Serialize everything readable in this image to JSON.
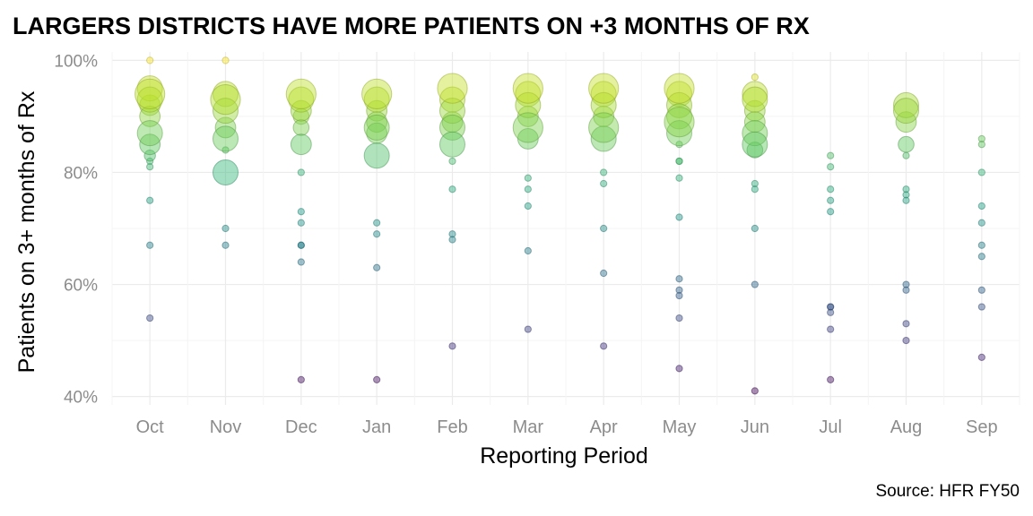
{
  "chart_data": {
    "type": "scatter",
    "title": "LARGERS DISTRICTS HAVE MORE PATIENTS ON +3 MONTHS OF RX",
    "xlabel": "Reporting Period",
    "ylabel": "Patients on 3+ months of Rx",
    "caption": "Source: HFR FY50",
    "categories": [
      "Oct",
      "Nov",
      "Dec",
      "Jan",
      "Feb",
      "Mar",
      "Apr",
      "May",
      "Jun",
      "Jul",
      "Aug",
      "Sep"
    ],
    "ylim": [
      38.5,
      101.5
    ],
    "y_ticks": [
      40,
      60,
      80,
      100
    ],
    "y_tick_labels": [
      "40%",
      "60%",
      "80%",
      "100%"
    ],
    "grid": true,
    "color_scale": "viridis (by value)",
    "points": [
      {
        "x": "Oct",
        "y": 100,
        "size": 1
      },
      {
        "x": "Oct",
        "y": 95,
        "size": 5
      },
      {
        "x": "Oct",
        "y": 94,
        "size": 6
      },
      {
        "x": "Oct",
        "y": 93,
        "size": 5
      },
      {
        "x": "Oct",
        "y": 92,
        "size": 4
      },
      {
        "x": "Oct",
        "y": 90,
        "size": 4
      },
      {
        "x": "Oct",
        "y": 87,
        "size": 5
      },
      {
        "x": "Oct",
        "y": 85,
        "size": 4
      },
      {
        "x": "Oct",
        "y": 83,
        "size": 2
      },
      {
        "x": "Oct",
        "y": 82,
        "size": 1
      },
      {
        "x": "Oct",
        "y": 81,
        "size": 1
      },
      {
        "x": "Oct",
        "y": 75,
        "size": 1
      },
      {
        "x": "Oct",
        "y": 67,
        "size": 1
      },
      {
        "x": "Oct",
        "y": 54,
        "size": 1
      },
      {
        "x": "Nov",
        "y": 100,
        "size": 1
      },
      {
        "x": "Nov",
        "y": 94,
        "size": 5
      },
      {
        "x": "Nov",
        "y": 93,
        "size": 6
      },
      {
        "x": "Nov",
        "y": 91,
        "size": 5
      },
      {
        "x": "Nov",
        "y": 88,
        "size": 4
      },
      {
        "x": "Nov",
        "y": 86,
        "size": 5
      },
      {
        "x": "Nov",
        "y": 84,
        "size": 1
      },
      {
        "x": "Nov",
        "y": 80,
        "size": 5
      },
      {
        "x": "Nov",
        "y": 70,
        "size": 1
      },
      {
        "x": "Nov",
        "y": 67,
        "size": 1
      },
      {
        "x": "Dec",
        "y": 94,
        "size": 6
      },
      {
        "x": "Dec",
        "y": 93,
        "size": 5
      },
      {
        "x": "Dec",
        "y": 91,
        "size": 4
      },
      {
        "x": "Dec",
        "y": 90,
        "size": 3
      },
      {
        "x": "Dec",
        "y": 88,
        "size": 3
      },
      {
        "x": "Dec",
        "y": 85,
        "size": 4
      },
      {
        "x": "Dec",
        "y": 80,
        "size": 1
      },
      {
        "x": "Dec",
        "y": 73,
        "size": 1
      },
      {
        "x": "Dec",
        "y": 71,
        "size": 1
      },
      {
        "x": "Dec",
        "y": 67,
        "size": 1
      },
      {
        "x": "Dec",
        "y": 67,
        "size": 1
      },
      {
        "x": "Dec",
        "y": 64,
        "size": 1
      },
      {
        "x": "Dec",
        "y": 43,
        "size": 1
      },
      {
        "x": "Jan",
        "y": 94,
        "size": 6
      },
      {
        "x": "Jan",
        "y": 93,
        "size": 5
      },
      {
        "x": "Jan",
        "y": 91,
        "size": 4
      },
      {
        "x": "Jan",
        "y": 89,
        "size": 4
      },
      {
        "x": "Jan",
        "y": 88,
        "size": 5
      },
      {
        "x": "Jan",
        "y": 87,
        "size": 4
      },
      {
        "x": "Jan",
        "y": 83,
        "size": 5
      },
      {
        "x": "Jan",
        "y": 71,
        "size": 1
      },
      {
        "x": "Jan",
        "y": 69,
        "size": 1
      },
      {
        "x": "Jan",
        "y": 63,
        "size": 1
      },
      {
        "x": "Jan",
        "y": 43,
        "size": 1
      },
      {
        "x": "Feb",
        "y": 95,
        "size": 6
      },
      {
        "x": "Feb",
        "y": 93,
        "size": 5
      },
      {
        "x": "Feb",
        "y": 91,
        "size": 5
      },
      {
        "x": "Feb",
        "y": 89,
        "size": 4
      },
      {
        "x": "Feb",
        "y": 88,
        "size": 5
      },
      {
        "x": "Feb",
        "y": 85,
        "size": 5
      },
      {
        "x": "Feb",
        "y": 82,
        "size": 1
      },
      {
        "x": "Feb",
        "y": 77,
        "size": 1
      },
      {
        "x": "Feb",
        "y": 69,
        "size": 1
      },
      {
        "x": "Feb",
        "y": 68,
        "size": 1
      },
      {
        "x": "Feb",
        "y": 49,
        "size": 1
      },
      {
        "x": "Mar",
        "y": 95,
        "size": 6
      },
      {
        "x": "Mar",
        "y": 94,
        "size": 5
      },
      {
        "x": "Mar",
        "y": 92,
        "size": 5
      },
      {
        "x": "Mar",
        "y": 90,
        "size": 4
      },
      {
        "x": "Mar",
        "y": 88,
        "size": 6
      },
      {
        "x": "Mar",
        "y": 86,
        "size": 4
      },
      {
        "x": "Mar",
        "y": 79,
        "size": 1
      },
      {
        "x": "Mar",
        "y": 77,
        "size": 1
      },
      {
        "x": "Mar",
        "y": 74,
        "size": 1
      },
      {
        "x": "Mar",
        "y": 66,
        "size": 1
      },
      {
        "x": "Mar",
        "y": 52,
        "size": 1
      },
      {
        "x": "Apr",
        "y": 95,
        "size": 6
      },
      {
        "x": "Apr",
        "y": 94,
        "size": 5
      },
      {
        "x": "Apr",
        "y": 92,
        "size": 5
      },
      {
        "x": "Apr",
        "y": 90,
        "size": 4
      },
      {
        "x": "Apr",
        "y": 88,
        "size": 6
      },
      {
        "x": "Apr",
        "y": 86,
        "size": 5
      },
      {
        "x": "Apr",
        "y": 80,
        "size": 1
      },
      {
        "x": "Apr",
        "y": 78,
        "size": 1
      },
      {
        "x": "Apr",
        "y": 70,
        "size": 1
      },
      {
        "x": "Apr",
        "y": 62,
        "size": 1
      },
      {
        "x": "Apr",
        "y": 49,
        "size": 1
      },
      {
        "x": "May",
        "y": 95,
        "size": 6
      },
      {
        "x": "May",
        "y": 94,
        "size": 5
      },
      {
        "x": "May",
        "y": 92,
        "size": 5
      },
      {
        "x": "May",
        "y": 90,
        "size": 5
      },
      {
        "x": "May",
        "y": 89,
        "size": 6
      },
      {
        "x": "May",
        "y": 87,
        "size": 5
      },
      {
        "x": "May",
        "y": 85,
        "size": 1
      },
      {
        "x": "May",
        "y": 82,
        "size": 1
      },
      {
        "x": "May",
        "y": 82,
        "size": 1
      },
      {
        "x": "May",
        "y": 79,
        "size": 1
      },
      {
        "x": "May",
        "y": 72,
        "size": 1
      },
      {
        "x": "May",
        "y": 61,
        "size": 1
      },
      {
        "x": "May",
        "y": 59,
        "size": 1
      },
      {
        "x": "May",
        "y": 58,
        "size": 1
      },
      {
        "x": "May",
        "y": 54,
        "size": 1
      },
      {
        "x": "May",
        "y": 45,
        "size": 1
      },
      {
        "x": "Jun",
        "y": 97,
        "size": 1
      },
      {
        "x": "Jun",
        "y": 94,
        "size": 5
      },
      {
        "x": "Jun",
        "y": 93,
        "size": 5
      },
      {
        "x": "Jun",
        "y": 91,
        "size": 4
      },
      {
        "x": "Jun",
        "y": 89,
        "size": 4
      },
      {
        "x": "Jun",
        "y": 87,
        "size": 5
      },
      {
        "x": "Jun",
        "y": 85,
        "size": 5
      },
      {
        "x": "Jun",
        "y": 84,
        "size": 3
      },
      {
        "x": "Jun",
        "y": 78,
        "size": 1
      },
      {
        "x": "Jun",
        "y": 77,
        "size": 1
      },
      {
        "x": "Jun",
        "y": 70,
        "size": 1
      },
      {
        "x": "Jun",
        "y": 60,
        "size": 1
      },
      {
        "x": "Jun",
        "y": 41,
        "size": 1
      },
      {
        "x": "Jul",
        "y": 83,
        "size": 1
      },
      {
        "x": "Jul",
        "y": 81,
        "size": 1
      },
      {
        "x": "Jul",
        "y": 77,
        "size": 1
      },
      {
        "x": "Jul",
        "y": 75,
        "size": 1
      },
      {
        "x": "Jul",
        "y": 73,
        "size": 1
      },
      {
        "x": "Jul",
        "y": 56,
        "size": 1
      },
      {
        "x": "Jul",
        "y": 56,
        "size": 1
      },
      {
        "x": "Jul",
        "y": 55,
        "size": 1
      },
      {
        "x": "Jul",
        "y": 52,
        "size": 1
      },
      {
        "x": "Jul",
        "y": 43,
        "size": 1
      },
      {
        "x": "Aug",
        "y": 92,
        "size": 5
      },
      {
        "x": "Aug",
        "y": 91,
        "size": 5
      },
      {
        "x": "Aug",
        "y": 89,
        "size": 4
      },
      {
        "x": "Aug",
        "y": 85,
        "size": 3
      },
      {
        "x": "Aug",
        "y": 83,
        "size": 1
      },
      {
        "x": "Aug",
        "y": 77,
        "size": 1
      },
      {
        "x": "Aug",
        "y": 76,
        "size": 1
      },
      {
        "x": "Aug",
        "y": 75,
        "size": 1
      },
      {
        "x": "Aug",
        "y": 60,
        "size": 1
      },
      {
        "x": "Aug",
        "y": 59,
        "size": 1
      },
      {
        "x": "Aug",
        "y": 53,
        "size": 1
      },
      {
        "x": "Aug",
        "y": 50,
        "size": 1
      },
      {
        "x": "Sep",
        "y": 86,
        "size": 1
      },
      {
        "x": "Sep",
        "y": 85,
        "size": 1
      },
      {
        "x": "Sep",
        "y": 80,
        "size": 1
      },
      {
        "x": "Sep",
        "y": 74,
        "size": 1
      },
      {
        "x": "Sep",
        "y": 71,
        "size": 1
      },
      {
        "x": "Sep",
        "y": 67,
        "size": 1
      },
      {
        "x": "Sep",
        "y": 65,
        "size": 1
      },
      {
        "x": "Sep",
        "y": 59,
        "size": 1
      },
      {
        "x": "Sep",
        "y": 56,
        "size": 1
      },
      {
        "x": "Sep",
        "y": 47,
        "size": 1
      }
    ]
  }
}
